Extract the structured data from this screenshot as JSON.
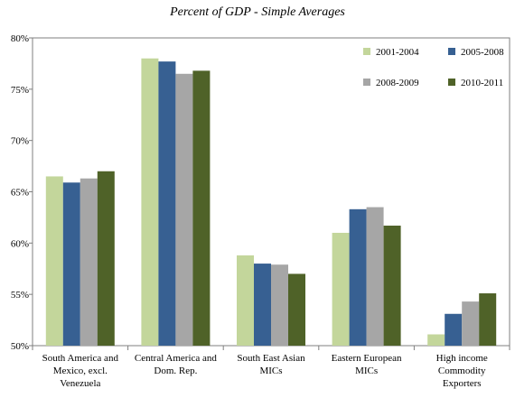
{
  "chart_data": {
    "type": "bar",
    "title": "Percent of GDP - Simple Averages",
    "xlabel": "",
    "ylabel": "",
    "ylim": [
      50,
      80
    ],
    "y_ticks": [
      "50%",
      "55%",
      "60%",
      "65%",
      "70%",
      "75%",
      "80%"
    ],
    "y_tick_values": [
      50,
      55,
      60,
      65,
      70,
      75,
      80
    ],
    "grid": false,
    "legend_position": "top-right",
    "categories": [
      [
        "South America and",
        "Mexico, excl.",
        "Venezuela"
      ],
      [
        "Central America and",
        "Dom. Rep."
      ],
      [
        "South East Asian",
        "MICs"
      ],
      [
        "Eastern European",
        "MICs"
      ],
      [
        "High income",
        "Commodity",
        "Exporters"
      ]
    ],
    "series": [
      {
        "name": "2001-2004",
        "color": "#c3d69b",
        "values": [
          66.5,
          78.0,
          58.8,
          61.0,
          51.1
        ]
      },
      {
        "name": "2005-2008",
        "color": "#376092",
        "values": [
          65.9,
          77.7,
          58.0,
          63.3,
          53.1
        ]
      },
      {
        "name": "2008-2009",
        "color": "#a6a6a6",
        "values": [
          66.3,
          76.5,
          57.9,
          63.5,
          54.3
        ]
      },
      {
        "name": "2010-2011",
        "color": "#4f6228",
        "values": [
          67.0,
          76.8,
          57.0,
          61.7,
          55.1
        ]
      }
    ]
  }
}
